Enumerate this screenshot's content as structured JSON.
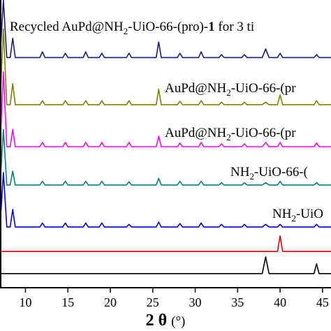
{
  "chart_data": {
    "type": "line",
    "annotations": [
      [
        "Recycled AuPd@NH",
        "2",
        "-UiO-66-(pro)-",
        "1",
        " for 3 ti"
      ],
      [
        "AuPd@NH",
        "2",
        "-UiO-66-(pr"
      ],
      [
        "AuPd@NH",
        "2",
        "-UiO-66-(pr"
      ],
      [
        "NH",
        "2",
        "-UiO-66-("
      ],
      [
        "NH",
        "2",
        "-UiO"
      ]
    ],
    "xlabel": [
      "2 θ",
      "(°)"
    ],
    "xlim": [
      7,
      46
    ],
    "xticks": [
      10,
      15,
      20,
      25,
      30,
      35,
      40,
      45
    ],
    "ylim": [
      0,
      100
    ],
    "x": [
      7.0,
      7.4,
      7.8,
      8.2,
      8.5,
      8.8,
      11.7,
      12.0,
      12.3,
      14.4,
      14.7,
      15.0,
      16.8,
      17.1,
      17.4,
      18.7,
      19.0,
      19.3,
      21.9,
      22.2,
      22.5,
      25.4,
      25.7,
      26.0,
      27.9,
      28.2,
      28.5,
      30.4,
      30.7,
      31.0,
      32.8,
      33.1,
      33.4,
      35.5,
      35.8,
      36.1,
      37.9,
      38.3,
      38.7,
      39.7,
      40.0,
      40.3,
      44.0,
      44.3,
      44.6,
      46.0
    ],
    "series": [
      {
        "color": "#1a1a7a",
        "values": [
          80,
          100,
          80,
          80,
          86.7,
          80,
          80,
          82,
          80,
          80,
          81.5,
          80,
          80,
          82,
          80,
          80,
          81.5,
          80,
          80,
          81.5,
          80,
          80,
          85.4,
          80,
          80,
          81.5,
          80,
          80,
          82,
          80,
          80,
          81,
          80,
          80,
          81,
          80,
          80,
          83,
          80,
          80,
          81.5,
          80,
          80,
          81,
          80,
          80
        ]
      },
      {
        "color": "#808000",
        "values": [
          63.6,
          90,
          63.6,
          63.6,
          70.9,
          63.6,
          63.6,
          65,
          63.6,
          63.6,
          65,
          63.6,
          63.6,
          65,
          63.6,
          63.6,
          65,
          63.6,
          63.6,
          65,
          63.6,
          63.6,
          69,
          63.6,
          63.6,
          64.8,
          63.6,
          63.6,
          65,
          63.6,
          63.6,
          64.5,
          63.6,
          63.6,
          64.5,
          63.6,
          63.6,
          64.5,
          63.6,
          63.6,
          67,
          63.6,
          63.6,
          65,
          63.6,
          63.6
        ]
      },
      {
        "color": "#ff00ff",
        "values": [
          49,
          75,
          49,
          49,
          55,
          49,
          49,
          50.5,
          49,
          49,
          50.5,
          49,
          49,
          50.5,
          49,
          49,
          50.5,
          49,
          49,
          50.5,
          49,
          49,
          52.7,
          49,
          49,
          50.3,
          49,
          49,
          50.5,
          49,
          49,
          50,
          49,
          49,
          50,
          49,
          49,
          50.5,
          49,
          49,
          50.5,
          49,
          49,
          50.3,
          49,
          49
        ]
      },
      {
        "color": "#008080",
        "values": [
          35.7,
          55,
          35.7,
          35.7,
          40.5,
          35.7,
          35.7,
          37,
          35.7,
          35.7,
          37,
          35.7,
          35.7,
          37,
          35.7,
          35.7,
          37,
          35.7,
          35.7,
          36.8,
          35.7,
          35.7,
          38,
          35.7,
          35.7,
          37,
          35.7,
          35.7,
          37,
          35.7,
          35.7,
          36.5,
          35.7,
          35.7,
          36.5,
          35.7,
          35.7,
          36.5,
          35.7,
          35.7,
          37,
          35.7,
          35.7,
          36.5,
          35.7,
          35.7
        ]
      },
      {
        "color": "#0000e0",
        "values": [
          21.1,
          40,
          21.1,
          21.1,
          27.2,
          21.1,
          21.1,
          22.5,
          21.1,
          21.1,
          22.5,
          21.1,
          21.1,
          22.5,
          21.1,
          21.1,
          22.5,
          21.1,
          21.1,
          22,
          21.1,
          21.1,
          22.8,
          21.1,
          21.1,
          22.3,
          21.1,
          21.1,
          22.5,
          21.1,
          21.1,
          22,
          21.1,
          21.1,
          22,
          21.1,
          21.1,
          22,
          21.1,
          21.1,
          22,
          21.1,
          21.1,
          22,
          21.1,
          21.1
        ]
      },
      {
        "color": "#e00000",
        "values": [
          12.6,
          12.6,
          12.6,
          12.6,
          12.6,
          12.6,
          12.6,
          12.6,
          12.6,
          12.6,
          12.6,
          12.6,
          12.6,
          12.6,
          12.6,
          12.6,
          12.6,
          12.6,
          12.6,
          12.6,
          12.6,
          12.6,
          12.6,
          12.6,
          12.6,
          12.6,
          12.6,
          12.6,
          12.6,
          12.6,
          12.6,
          12.6,
          12.6,
          12.6,
          12.6,
          12.6,
          12.6,
          12.6,
          12.6,
          12.6,
          18,
          12.6,
          12.6,
          12.6,
          12.6,
          12.6
        ]
      },
      {
        "color": "#000000",
        "values": [
          4.9,
          4.9,
          4.9,
          4.9,
          4.9,
          4.9,
          4.9,
          4.9,
          4.9,
          4.9,
          4.9,
          4.9,
          4.9,
          4.9,
          4.9,
          4.9,
          4.9,
          4.9,
          4.9,
          4.9,
          4.9,
          4.9,
          4.9,
          4.9,
          4.9,
          4.9,
          4.9,
          4.9,
          4.9,
          4.9,
          4.9,
          4.9,
          4.9,
          4.9,
          4.9,
          4.9,
          4.9,
          10.7,
          4.9,
          4.9,
          4.9,
          4.9,
          4.9,
          8.3,
          4.9,
          4.9
        ]
      }
    ]
  }
}
